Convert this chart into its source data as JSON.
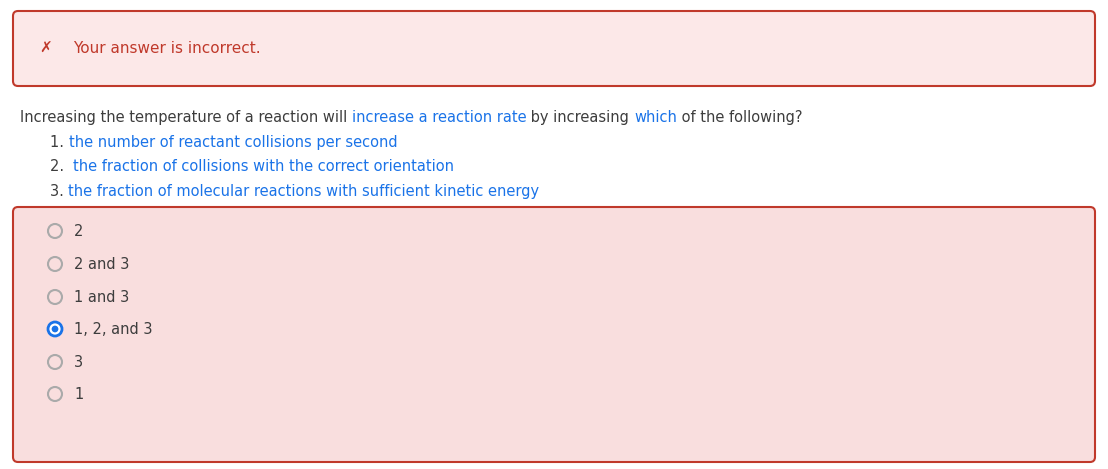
{
  "background_color": "#ffffff",
  "error_box": {
    "bg_color": "#fce8e8",
    "border_color": "#c0392b",
    "x_icon": "✗",
    "text": "Your answer is incorrect.",
    "text_color": "#c0392b"
  },
  "question_segments": [
    {
      "text": "Increasing the temperature of a reaction will ",
      "color": "#3d3d3d"
    },
    {
      "text": "increase a reaction rate",
      "color": "#1a73e8"
    },
    {
      "text": " by increasing ",
      "color": "#3d3d3d"
    },
    {
      "text": "which",
      "color": "#1a73e8"
    },
    {
      "text": " of the following?",
      "color": "#3d3d3d"
    }
  ],
  "numbered_items": [
    {
      "prefix": "1. ",
      "text": "the number of reactant collisions per second",
      "prefix_color": "#3d3d3d",
      "text_color": "#1a73e8"
    },
    {
      "prefix": "2.  ",
      "text": "the fraction of collisions with the correct orientation",
      "prefix_color": "#3d3d3d",
      "text_color": "#1a73e8"
    },
    {
      "prefix": "3. ",
      "text": "the fraction of molecular reactions with sufficient kinetic energy",
      "prefix_color": "#3d3d3d",
      "text_color": "#1a73e8"
    }
  ],
  "answer_box": {
    "bg_color": "#f9dede",
    "border_color": "#c0392b",
    "options": [
      {
        "label": "2",
        "selected": false
      },
      {
        "label": "2 and 3",
        "selected": false
      },
      {
        "label": "1 and 3",
        "selected": false
      },
      {
        "label": "1, 2, and 3",
        "selected": true
      },
      {
        "label": "3",
        "selected": false
      },
      {
        "label": "1",
        "selected": false
      }
    ],
    "radio_unselected": "#aaaaaa",
    "radio_selected_ring": "#1a73e8",
    "radio_selected_dot": "#1a73e8",
    "text_color": "#3d3d3d"
  },
  "font_size": 10.5,
  "font_size_error": 11.0
}
